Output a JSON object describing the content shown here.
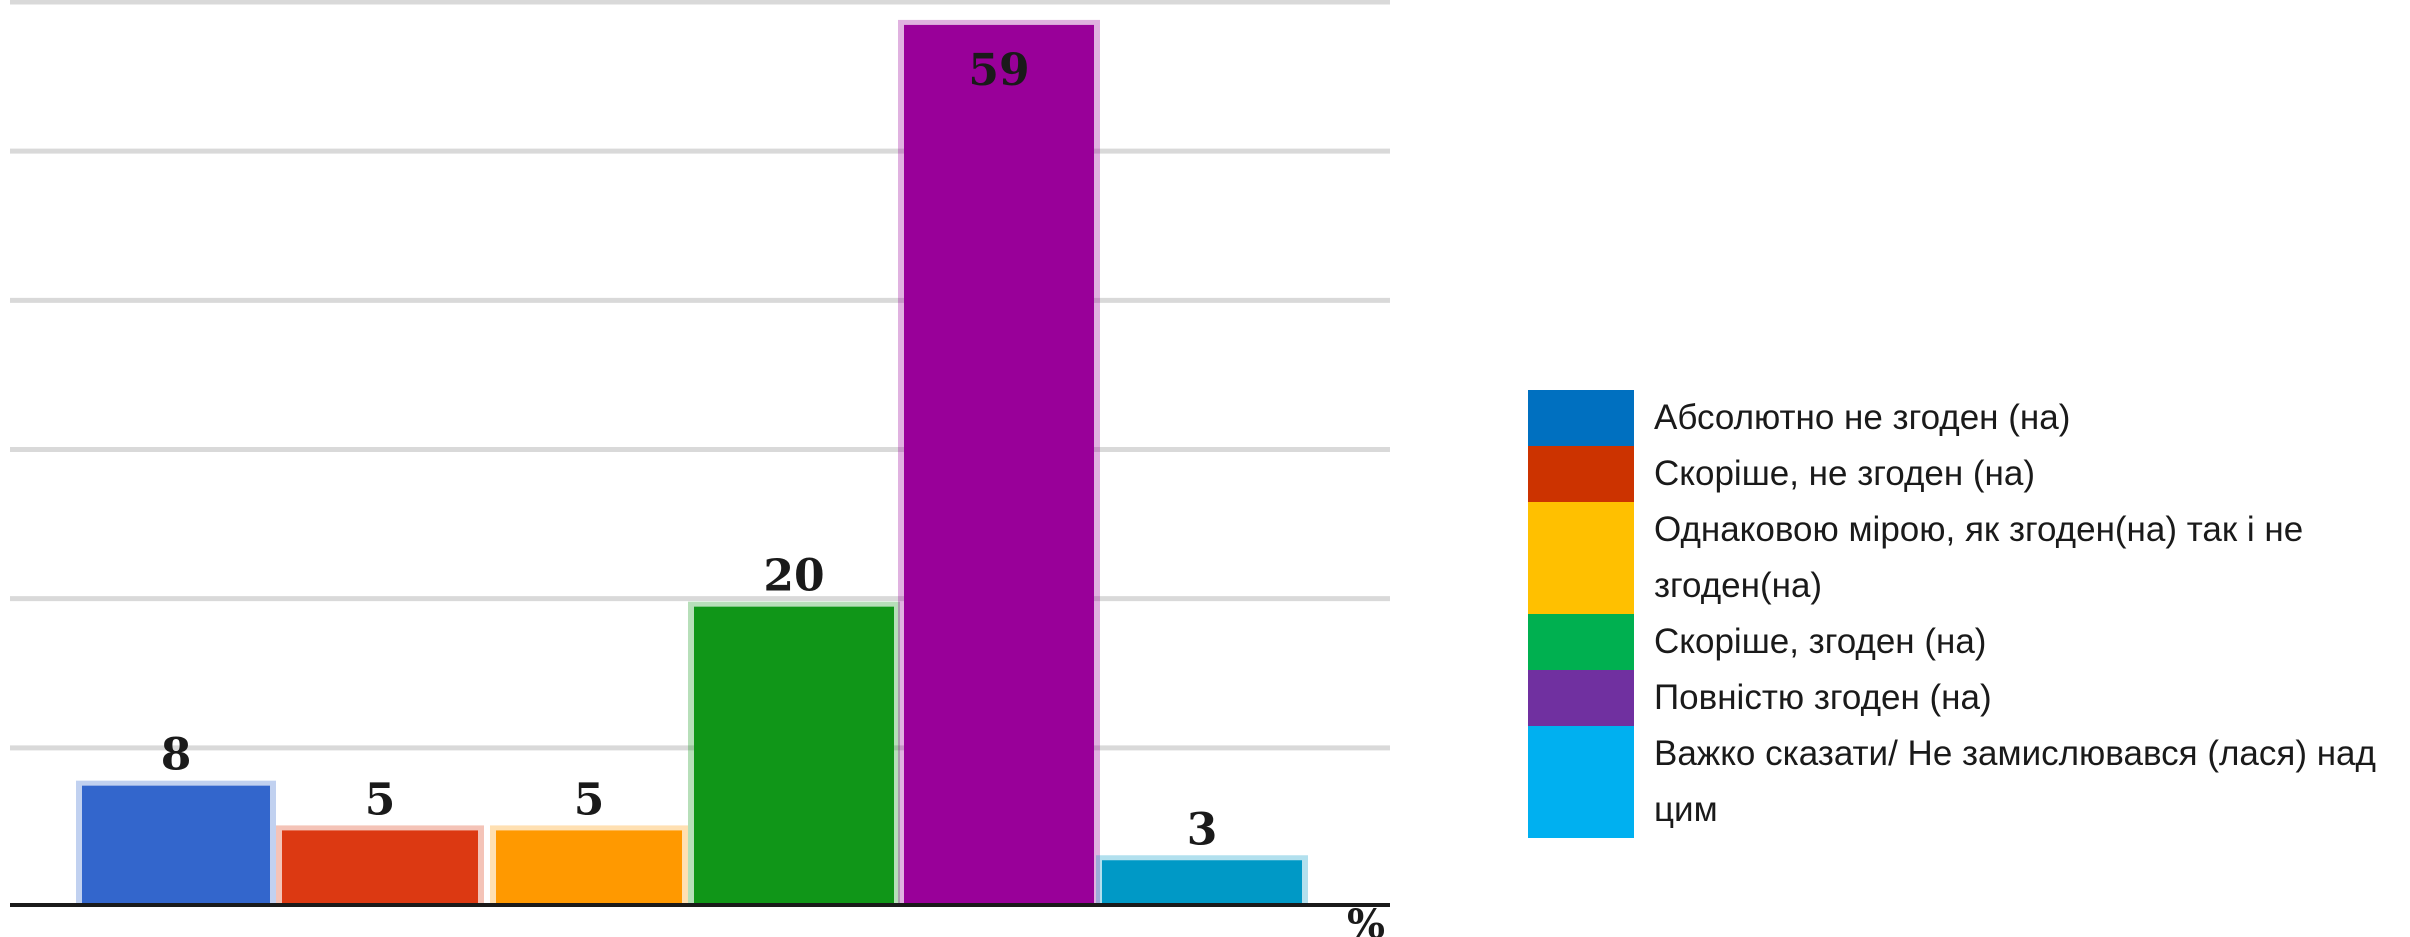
{
  "chart_data": {
    "type": "bar",
    "categories": [
      "Абсолютно не згоден (на)",
      "Скоріше, не згоден (на)",
      "Однаковою мірою, як згоден(на) так і не згоден(на)",
      "Скоріше, згоден (на)",
      "Повністю згоден (на)",
      "Важко сказати/ Не замислювався (лася) над цим"
    ],
    "values": [
      8,
      5,
      5,
      20,
      59,
      3
    ],
    "value_labels": [
      "8",
      "5",
      "5",
      "20",
      "59",
      "3"
    ],
    "bar_colors": [
      "#3366cc",
      "#dc3912",
      "#ff9900",
      "#109618",
      "#990099",
      "#0099c6"
    ],
    "unit": "%",
    "ylim": [
      0,
      60
    ],
    "grid": true,
    "legend_position": "right",
    "legend": [
      {
        "label": "Абсолютно не згоден (на)",
        "color": "#0070c0"
      },
      {
        "label": "Скоріше, не згоден (на)",
        "color": "#cc3300"
      },
      {
        "label": "Однаковою мірою, як згоден(на) так і не згоден(на)",
        "color": "#ffc000"
      },
      {
        "label": "Скоріше, згоден (на)",
        "color": "#00b050"
      },
      {
        "label": "Повністю згоден (на)",
        "color": "#7030a0"
      },
      {
        "label": "Важко сказати/ Не замислювався (лася) над цим",
        "color": "#00b0f0"
      }
    ]
  }
}
